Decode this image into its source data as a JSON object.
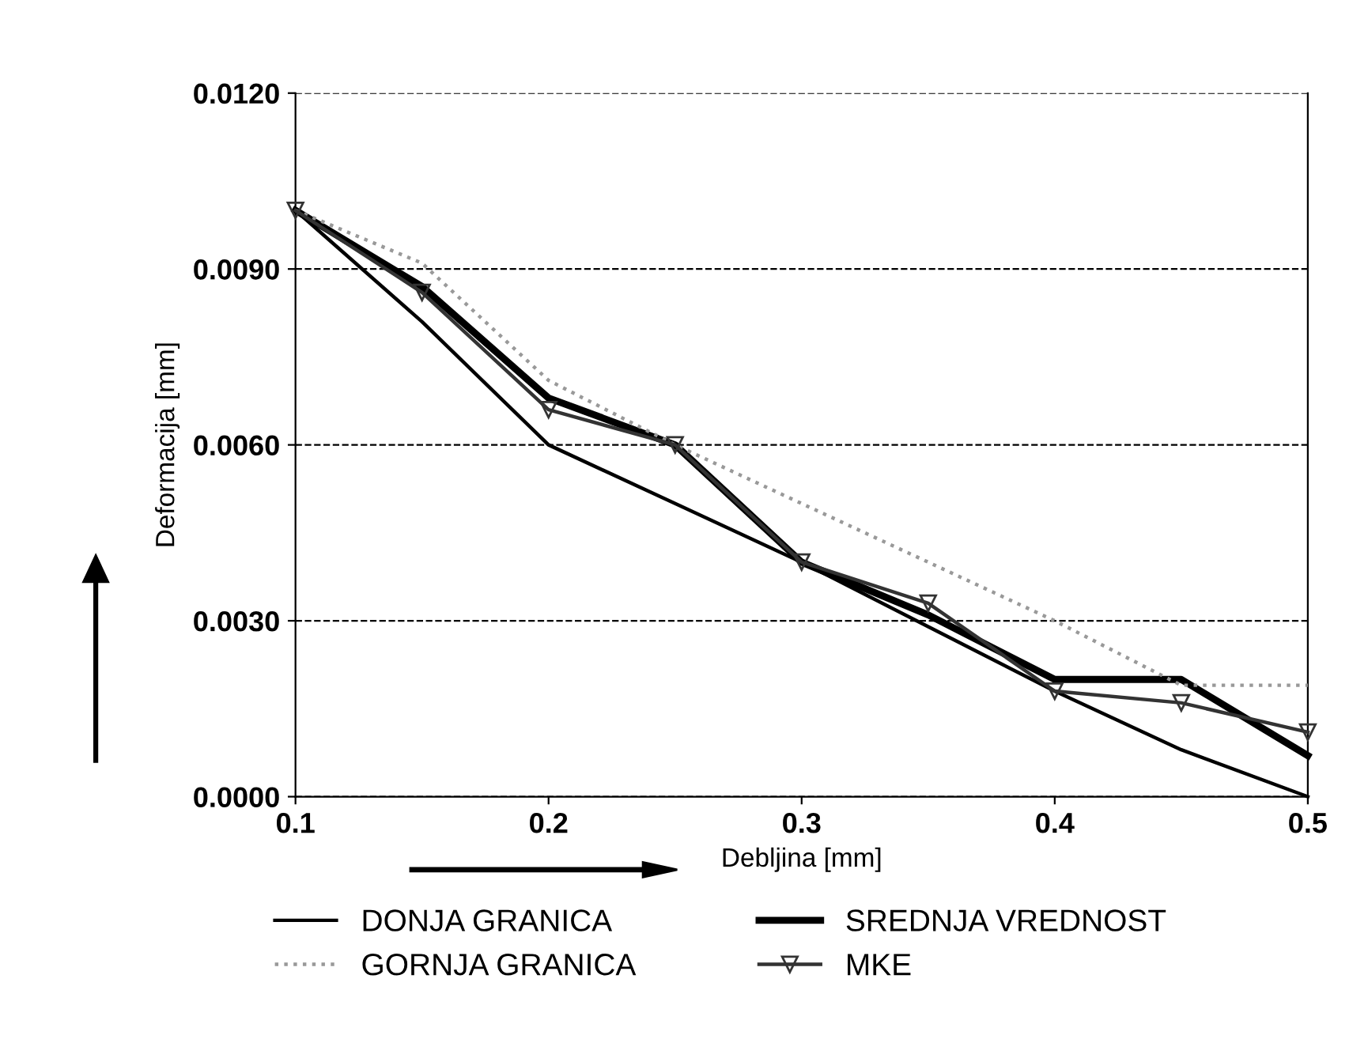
{
  "chart_data": {
    "type": "line",
    "xlabel": "Debljina [mm]",
    "ylabel": "Deformacija [mm]",
    "x": [
      0.1,
      0.15,
      0.2,
      0.25,
      0.3,
      0.35,
      0.4,
      0.45,
      0.5
    ],
    "series": [
      {
        "name": "DONJA GRANICA",
        "color": "#000000",
        "line_style": "solid",
        "values": [
          0.01,
          0.0081,
          0.006,
          0.005,
          0.004,
          0.0029,
          0.0018,
          0.0008,
          0.0
        ]
      },
      {
        "name": "SREDNJA VREDNOST",
        "color": "#000000",
        "line_style": "solid",
        "values": [
          0.01,
          0.0087,
          0.0068,
          0.006,
          0.004,
          0.0031,
          0.002,
          0.002,
          0.0007
        ]
      },
      {
        "name": "GORNJA GRANICA",
        "color": "#999999",
        "line_style": "dotted",
        "values": [
          0.01,
          0.0091,
          0.0071,
          0.006,
          0.005,
          0.004,
          0.003,
          0.0019,
          0.0019
        ]
      },
      {
        "name": "MKE",
        "color": "#333333",
        "line_style": "solid",
        "marker": "triangle",
        "values": [
          0.01,
          0.0086,
          0.0066,
          0.006,
          0.004,
          0.0033,
          0.0018,
          0.0016,
          0.0011
        ]
      }
    ],
    "xlim": [
      0.1,
      0.5
    ],
    "xticks": [
      0.1,
      0.2,
      0.3,
      0.4,
      0.5
    ],
    "ylim": [
      0.0,
      0.012
    ],
    "yticks": [
      {
        "value": 0.0,
        "label": "0.0000"
      },
      {
        "value": 0.003,
        "label": "0.0030"
      },
      {
        "value": 0.006,
        "label": "0.0060"
      },
      {
        "value": 0.009,
        "label": "0.0090"
      },
      {
        "value": 0.012,
        "label": "0.0120"
      }
    ],
    "grid": "y",
    "legend": "bottom"
  }
}
